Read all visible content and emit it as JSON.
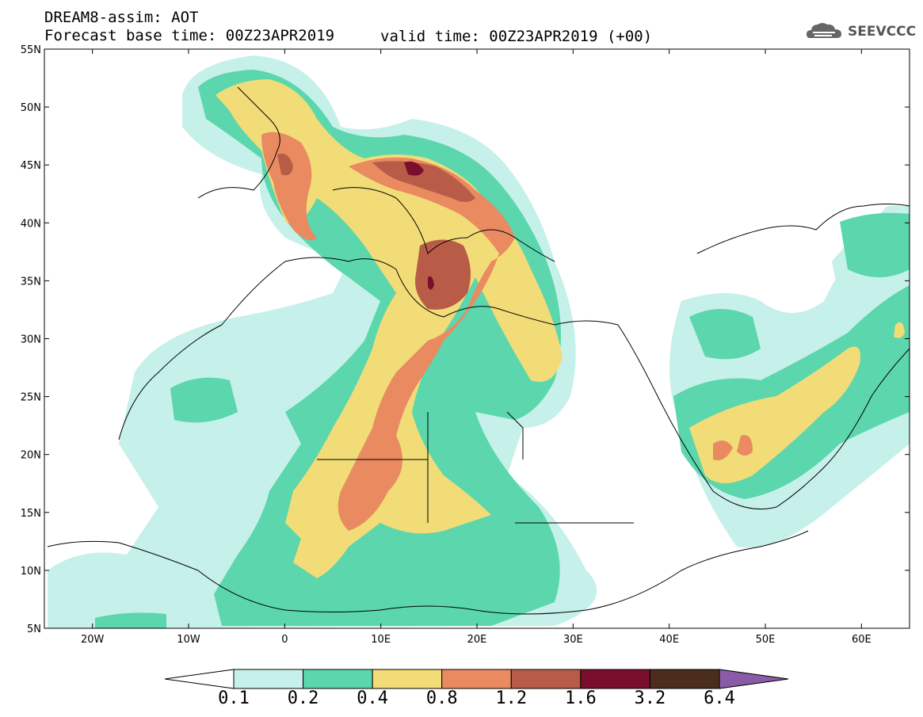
{
  "header": {
    "title": "DREAM8-assim: AOT",
    "base_time": "Forecast base time: 00Z23APR2019",
    "valid_time": "valid time: 00Z23APR2019 (+00)"
  },
  "logo": {
    "text": "SEEVCCC",
    "icon": "cloud-logo-icon"
  },
  "axes": {
    "lat_labels": [
      "55N",
      "50N",
      "45N",
      "40N",
      "35N",
      "30N",
      "25N",
      "20N",
      "15N",
      "10N",
      "5N"
    ],
    "lon_labels": [
      "20W",
      "10W",
      "0",
      "10E",
      "20E",
      "30E",
      "40E",
      "50E",
      "60E"
    ],
    "lat_range": [
      5,
      55
    ],
    "lon_range": [
      -25,
      65
    ]
  },
  "colorbar": {
    "labels": [
      "0.1",
      "0.2",
      "0.4",
      "0.8",
      "1.2",
      "1.6",
      "3.2",
      "6.4"
    ],
    "colors": [
      "#ffffff",
      "#c6f0ea",
      "#5bd6ad",
      "#f1dc78",
      "#e98a61",
      "#b85c47",
      "#7a0f2d",
      "#4a2d1a",
      "#8a5ca8"
    ]
  },
  "colors": {
    "lvl1": "#c6f0ea",
    "lvl2": "#5bd6ad",
    "lvl3": "#f1dc78",
    "lvl4": "#e98a61",
    "lvl5": "#b85c47",
    "lvl6": "#7a0f2d"
  }
}
